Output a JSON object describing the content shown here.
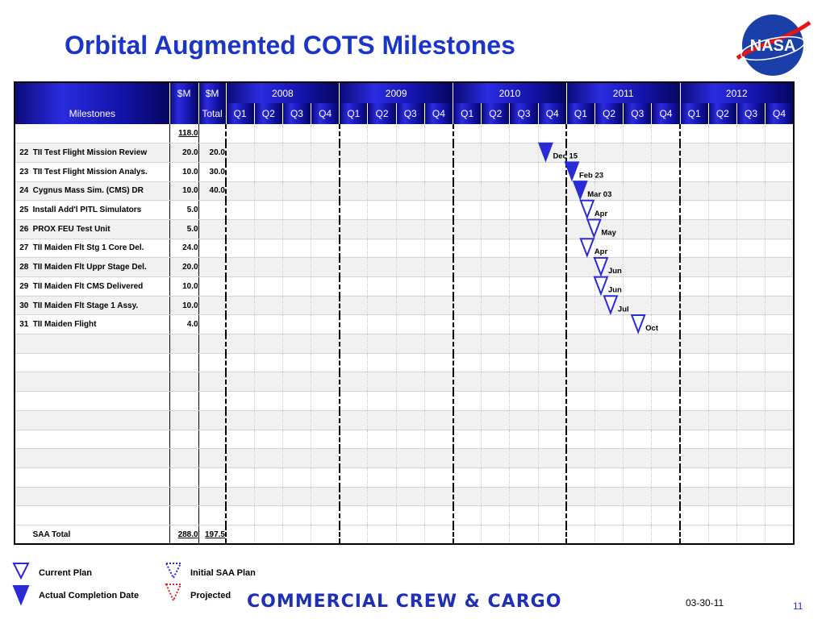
{
  "title": "Orbital Augmented COTS Milestones",
  "header": {
    "dollar_label_1": "$M",
    "dollar_label_2": "$M",
    "total_label": "Total",
    "milestones_label": "Milestones",
    "years": [
      "2008",
      "2009",
      "2010",
      "2011",
      "2012"
    ],
    "quarters": [
      "Q1",
      "Q2",
      "Q3",
      "Q4"
    ]
  },
  "top_total": "118.0",
  "rows": [
    {
      "id": "22",
      "name": "TII Test Flight Mission Review",
      "m": "20.0",
      "total": "20.0",
      "marker": {
        "type": "actual",
        "date_label": "Dec 15",
        "year_index": 2,
        "quarter": 3.75
      }
    },
    {
      "id": "23",
      "name": "TII Test Flight Mission Analys.",
      "m": "10.0",
      "total": "30.0",
      "marker": {
        "type": "actual",
        "date_label": "Feb 23",
        "year_index": 3,
        "quarter": 0.7
      }
    },
    {
      "id": "24",
      "name": "Cygnus Mass Sim. (CMS) DR",
      "m": "10.0",
      "total": "40.0",
      "marker": {
        "type": "actual",
        "date_label": "Mar 03",
        "year_index": 3,
        "quarter": 1.0
      }
    },
    {
      "id": "25",
      "name": "Install Add'l PITL Simulators",
      "m": "5.0",
      "total": "",
      "marker": {
        "type": "current",
        "date_label": "Apr",
        "year_index": 3,
        "quarter": 1.25
      }
    },
    {
      "id": "26",
      "name": "PROX FEU Test Unit",
      "m": "5.0",
      "total": "",
      "marker": {
        "type": "current",
        "date_label": "May",
        "year_index": 3,
        "quarter": 1.5
      }
    },
    {
      "id": "27",
      "name": "TII Maiden Flt Stg 1 Core Del.",
      "m": "24.0",
      "total": "",
      "marker": {
        "type": "current",
        "date_label": "Apr",
        "year_index": 3,
        "quarter": 1.25
      }
    },
    {
      "id": "28",
      "name": "TII Maiden Flt Uppr Stage Del.",
      "m": "20.0",
      "total": "",
      "marker": {
        "type": "current",
        "date_label": "Jun",
        "year_index": 3,
        "quarter": 1.75
      }
    },
    {
      "id": "29",
      "name": "TII Maiden Flt CMS Delivered",
      "m": "10.0",
      "total": "",
      "marker": {
        "type": "current",
        "date_label": "Jun",
        "year_index": 3,
        "quarter": 1.75
      }
    },
    {
      "id": "30",
      "name": "TII Maiden Flt Stage 1 Assy.",
      "m": "10.0",
      "total": "",
      "marker": {
        "type": "current",
        "date_label": "Jul",
        "year_index": 3,
        "quarter": 2.1
      }
    },
    {
      "id": "31",
      "name": "TII Maiden Flight",
      "m": "4.0",
      "total": "",
      "marker": {
        "type": "current",
        "date_label": "Oct",
        "year_index": 3,
        "quarter": 3.1
      }
    }
  ],
  "saa_total": {
    "label": "SAA Total",
    "m": "288.0",
    "total": "197.5"
  },
  "legend": {
    "current_plan": "Current Plan",
    "actual_completion": "Actual Completion Date",
    "initial_saa_plan": "Initial SAA Plan",
    "projected": "Projected"
  },
  "colors": {
    "actual": "#2a2ad6",
    "current": "#2a2ad6",
    "projected": "#e02020",
    "title": "#1a35c8"
  },
  "footer": {
    "brand": "COMMERCIAL CREW & CARGO",
    "date": "03-30-11",
    "page": "11"
  },
  "logo_text": "NASA"
}
